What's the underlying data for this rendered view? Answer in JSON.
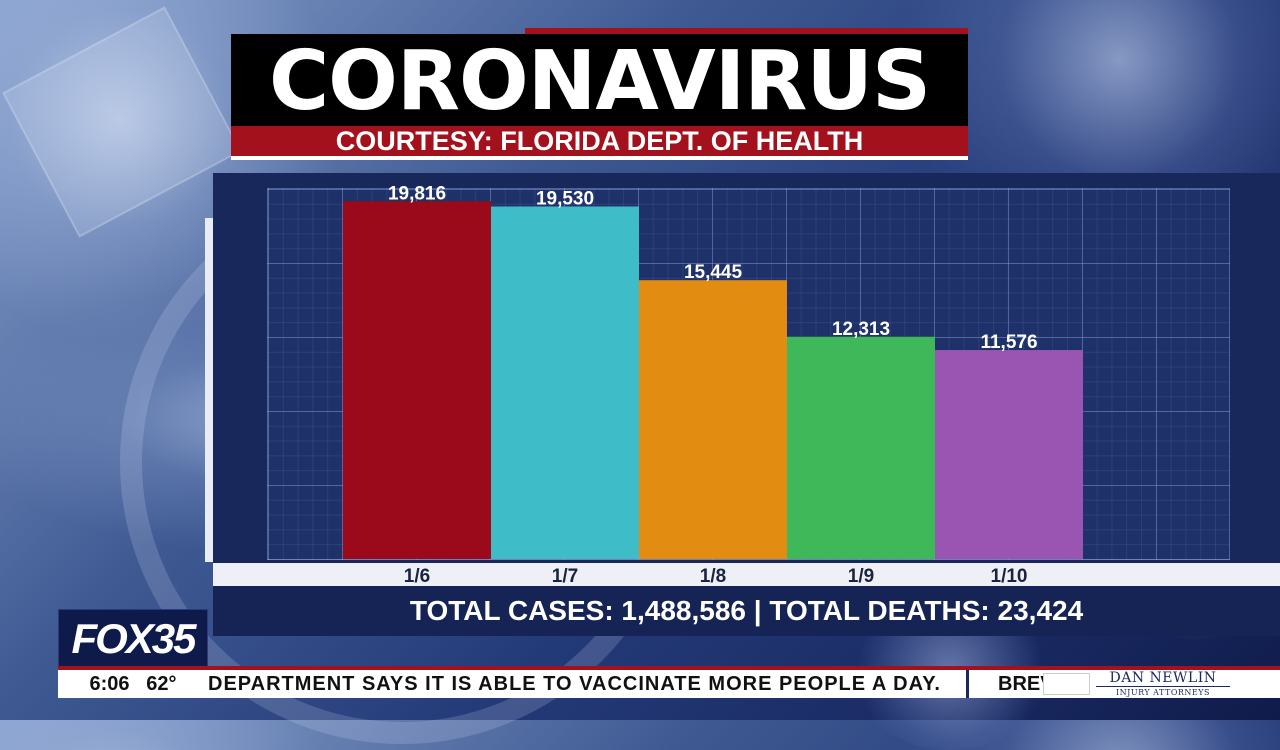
{
  "title": "CORONAVIRUS",
  "source": "COURTESY: FLORIDA DEPT. OF HEALTH",
  "totals": "TOTAL CASES: 1,488,586 | TOTAL DEATHS: 23,424",
  "colors": {
    "brand_red": "#a3111d",
    "panel_navy": "#19285a"
  },
  "chart_data": {
    "type": "bar",
    "categories": [
      "1/6",
      "1/7",
      "1/8",
      "1/9",
      "1/10"
    ],
    "values": [
      19816,
      19530,
      15445,
      12313,
      11576
    ],
    "value_labels": [
      "19,816",
      "19,530",
      "15,445",
      "12,313",
      "11,576"
    ],
    "bar_colors": [
      "#9b0a1b",
      "#3ebcc7",
      "#e28d12",
      "#3eb858",
      "#9a55b3"
    ],
    "title": "",
    "xlabel": "",
    "ylabel": "",
    "ylim": [
      0,
      20000
    ],
    "grid": true,
    "legend": "none"
  },
  "station": {
    "logo": "FOX35",
    "time": "6:06",
    "temp": "62°"
  },
  "ticker": {
    "text": "DEPARTMENT SAYS IT IS ABLE TO VACCINATE MORE PEOPLE A DAY.",
    "next": "BREV"
  },
  "sponsor": {
    "name": "DAN NEWLIN",
    "sub": "INJURY ATTORNEYS"
  }
}
